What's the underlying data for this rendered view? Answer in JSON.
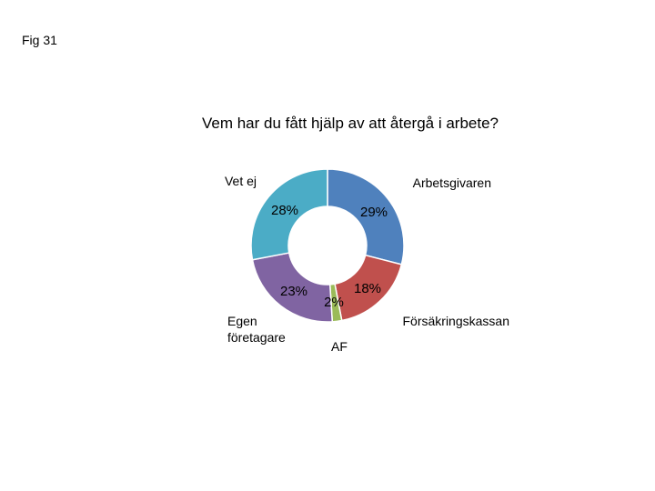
{
  "figure_label": "Fig 31",
  "chart_data": {
    "type": "pie",
    "variant": "donut",
    "title": "Vem har du fått hjälp av att återgå i arbete?",
    "slices": [
      {
        "label": "Arbetsgivaren",
        "value": 29,
        "display": "29%",
        "color": "#4F81BD"
      },
      {
        "label": "Försäkringskassan",
        "value": 18,
        "display": "18%",
        "color": "#C0504D"
      },
      {
        "label": "AF",
        "value": 2,
        "display": "2%",
        "color": "#9BBB59"
      },
      {
        "label": "Egen\nföretagare",
        "value": 23,
        "display": "23%",
        "color": "#8064A2"
      },
      {
        "label": "Vet ej",
        "value": 28,
        "display": "28%",
        "color": "#4BACC6"
      }
    ],
    "legend": "none"
  }
}
